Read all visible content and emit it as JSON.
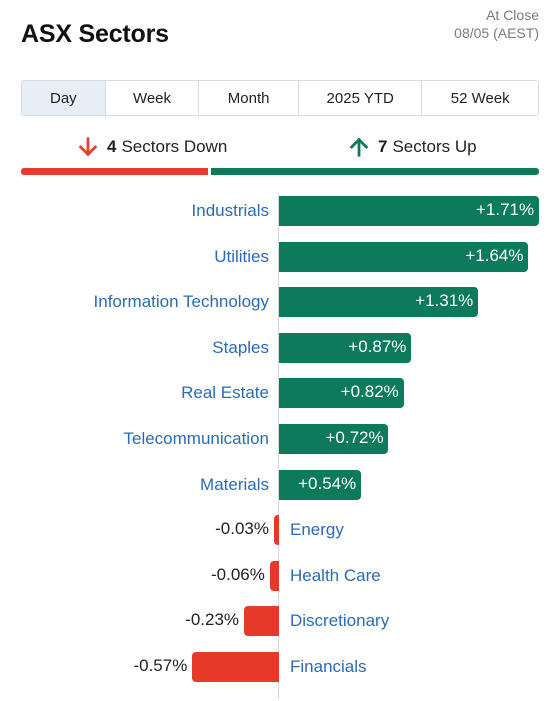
{
  "header": {
    "title": "ASX Sectors",
    "status_line1": "At Close",
    "status_line2": "08/05 (AEST)"
  },
  "tabs": [
    {
      "label": "Day",
      "active": true
    },
    {
      "label": "Week",
      "active": false
    },
    {
      "label": "Month",
      "active": false
    },
    {
      "label": "2025 YTD",
      "active": false
    },
    {
      "label": "52 Week",
      "active": false
    }
  ],
  "summary": {
    "down_count": "4",
    "down_label": "Sectors Down",
    "up_count": "7",
    "up_label": "Sectors Up",
    "down_color": "#e63c2b",
    "up_color": "#0d7a5a"
  },
  "chart_data": {
    "type": "bar",
    "orientation": "horizontal",
    "title": "",
    "xlabel": "",
    "ylabel": "",
    "xlim": [
      -0.6,
      1.71
    ],
    "categories": [
      "Industrials",
      "Utilities",
      "Information Technology",
      "Staples",
      "Real Estate",
      "Telecommunication",
      "Materials",
      "Energy",
      "Health Care",
      "Discretionary",
      "Financials"
    ],
    "values": [
      1.71,
      1.64,
      1.31,
      0.87,
      0.82,
      0.72,
      0.54,
      -0.03,
      -0.06,
      -0.23,
      -0.57
    ],
    "value_labels": [
      "+1.71%",
      "+1.64%",
      "+1.31%",
      "+0.87%",
      "+0.82%",
      "+0.72%",
      "+0.54%",
      "-0.03%",
      "-0.06%",
      "-0.23%",
      "-0.57%"
    ],
    "positive_color": "#0c7a5b",
    "negative_color": "#e6392a"
  }
}
